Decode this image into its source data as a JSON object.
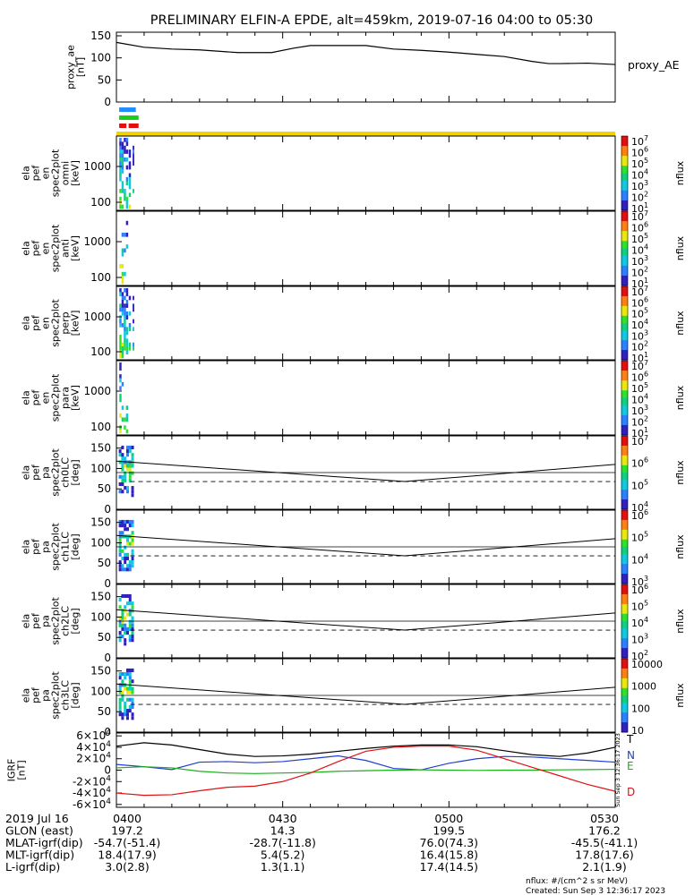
{
  "title": "PRELIMINARY ELFIN-A EPDE, alt=459km, 2019-07-16 04:00 to 05:30",
  "colors": {
    "black": "#000000",
    "blue": "#1f3fd0",
    "green": "#18b018",
    "red": "#e01010",
    "yellow": "#f2d200"
  },
  "chart_data": [
    {
      "type": "line",
      "name": "proxy_ae",
      "ylabel_lines": [
        "proxy_ae",
        "[nT]"
      ],
      "legend": "proxy_AE",
      "ylim": [
        0,
        150
      ],
      "yticks": [
        "150",
        "100",
        "50",
        "0"
      ],
      "x_minutes": [
        0,
        5,
        10,
        15,
        22,
        28,
        32,
        35,
        45,
        50,
        55,
        60,
        65,
        70,
        75,
        78,
        80,
        85,
        90
      ],
      "values": [
        135,
        124,
        120,
        118,
        112,
        112,
        122,
        128,
        128,
        120,
        117,
        113,
        108,
        103,
        92,
        87,
        87,
        88,
        85
      ]
    },
    {
      "type": "bar",
      "name": "state_bars",
      "colors": [
        "#1f8fff",
        "#18d018",
        "#e01010",
        "#f2d200"
      ]
    },
    {
      "type": "heatmap",
      "name": "spec_omni",
      "ylabel_lines": [
        "ela",
        "pef",
        "en",
        "spec2plot",
        "omni",
        "[keV]"
      ],
      "yticks": [
        "1000",
        "100"
      ],
      "zlabel": "nflux",
      "zticks": [
        "10^7",
        "10^6",
        "10^5",
        "10^4",
        "10^3",
        "10^2",
        "10^1"
      ]
    },
    {
      "type": "heatmap",
      "name": "spec_anti",
      "ylabel_lines": [
        "ela",
        "pef",
        "en",
        "spec2plot",
        "anti",
        "[keV]"
      ],
      "yticks": [
        "1000",
        "100"
      ],
      "zlabel": "nflux",
      "zticks": [
        "10^7",
        "10^6",
        "10^5",
        "10^4",
        "10^3",
        "10^2",
        "10^1"
      ]
    },
    {
      "type": "heatmap",
      "name": "spec_perp",
      "ylabel_lines": [
        "ela",
        "pef",
        "en",
        "spec2plot",
        "perp",
        "[keV]"
      ],
      "yticks": [
        "1000",
        "100"
      ],
      "zlabel": "nflux",
      "zticks": [
        "10^7",
        "10^6",
        "10^5",
        "10^4",
        "10^3",
        "10^2",
        "10^1"
      ]
    },
    {
      "type": "heatmap",
      "name": "spec_para",
      "ylabel_lines": [
        "ela",
        "pef",
        "en",
        "spec2plot",
        "para",
        "[keV]"
      ],
      "yticks": [
        "1000",
        "100"
      ],
      "zlabel": "nflux",
      "zticks": [
        "10^7",
        "10^6",
        "10^5",
        "10^4",
        "10^3",
        "10^2",
        "10^1"
      ]
    },
    {
      "type": "heatmap",
      "name": "pa_ch0",
      "ylabel_lines": [
        "ela",
        "pef",
        "pa",
        "spec2plot",
        "ch0LC",
        "[deg]"
      ],
      "ylim": [
        0,
        180
      ],
      "yticks": [
        "150",
        "100",
        "50",
        "0"
      ],
      "zlabel": "nflux",
      "zticks": [
        "10^7",
        "10^6",
        "10^5",
        "10^4"
      ],
      "solid_line": {
        "x": [
          0,
          52,
          90
        ],
        "y": [
          118,
          68,
          110
        ]
      },
      "ref_line": 90,
      "dashed_line": 68
    },
    {
      "type": "heatmap",
      "name": "pa_ch1",
      "ylabel_lines": [
        "ela",
        "pef",
        "pa",
        "spec2plot",
        "ch1LC",
        "[deg]"
      ],
      "ylim": [
        0,
        180
      ],
      "yticks": [
        "150",
        "100",
        "50",
        "0"
      ],
      "zlabel": "nflux",
      "zticks": [
        "10^6",
        "10^5",
        "10^4",
        "10^3"
      ],
      "solid_line": {
        "x": [
          0,
          52,
          90
        ],
        "y": [
          118,
          68,
          110
        ]
      },
      "ref_line": 90,
      "dashed_line": 68
    },
    {
      "type": "heatmap",
      "name": "pa_ch2",
      "ylabel_lines": [
        "ela",
        "pef",
        "pa",
        "spec2plot",
        "ch2LC",
        "[deg]"
      ],
      "ylim": [
        0,
        180
      ],
      "yticks": [
        "150",
        "100",
        "50",
        "0"
      ],
      "zlabel": "nflux",
      "zticks": [
        "10^6",
        "10^5",
        "10^4",
        "10^3",
        "10^2"
      ],
      "solid_line": {
        "x": [
          0,
          52,
          90
        ],
        "y": [
          118,
          68,
          110
        ]
      },
      "ref_line": 90,
      "dashed_line": 68
    },
    {
      "type": "heatmap",
      "name": "pa_ch3",
      "ylabel_lines": [
        "ela",
        "pef",
        "pa",
        "spec2plot",
        "ch3LC",
        "[deg]"
      ],
      "ylim": [
        0,
        180
      ],
      "yticks": [
        "150",
        "100",
        "50",
        "0"
      ],
      "zlabel": "nflux",
      "zticks": [
        "10000",
        "1000",
        "100",
        "10"
      ],
      "solid_line": {
        "x": [
          0,
          52,
          90
        ],
        "y": [
          118,
          68,
          110
        ]
      },
      "ref_line": 90,
      "dashed_line": 68
    },
    {
      "type": "line",
      "name": "igrf",
      "ylabel_lines": [
        "IGRF",
        "[nT]"
      ],
      "ylim": [
        -65000,
        65000
      ],
      "yticks": [
        "6×10^4",
        "4×10^4",
        "2×10^4",
        "0",
        "-2×10^4",
        "-4×10^4",
        "-6×10^4"
      ],
      "side_note": "Sun Sep 3 12:36:17 2023",
      "x": [
        0,
        5,
        10,
        15,
        20,
        25,
        30,
        35,
        40,
        45,
        50,
        55,
        60,
        65,
        70,
        75,
        80,
        85,
        90
      ],
      "series": [
        {
          "name": "T",
          "color": "#000000",
          "values": [
            42000,
            48000,
            44000,
            36000,
            28000,
            24000,
            25000,
            28000,
            33000,
            38000,
            42000,
            44000,
            44000,
            41000,
            34000,
            27000,
            24000,
            30000,
            40000
          ]
        },
        {
          "name": "N",
          "color": "#1f3fd0",
          "values": [
            10000,
            6000,
            1000,
            14000,
            15000,
            13000,
            15000,
            20000,
            25000,
            17000,
            3000,
            500,
            12000,
            20000,
            24000,
            23000,
            20000,
            17000,
            14000
          ]
        },
        {
          "name": "E",
          "color": "#18b018",
          "values": [
            4000,
            6000,
            4000,
            -2000,
            -5000,
            -6000,
            -5000,
            -4000,
            -2000,
            -1000,
            0,
            500,
            0,
            -500,
            0,
            0,
            500,
            1000,
            1500
          ]
        },
        {
          "name": "D",
          "color": "#e01010",
          "values": [
            -40000,
            -44000,
            -43000,
            -36000,
            -30000,
            -28000,
            -20000,
            -5000,
            15000,
            33000,
            40000,
            42000,
            42000,
            35000,
            20000,
            5000,
            -10000,
            -25000,
            -37000
          ]
        }
      ]
    }
  ],
  "footer": {
    "rows": [
      {
        "label": "2019 Jul 16",
        "values": [
          "0400",
          "0430",
          "0500",
          "0530"
        ]
      },
      {
        "label": "GLON (east)",
        "values": [
          "197.2",
          "14.3",
          "199.5",
          "176.2"
        ]
      },
      {
        "label": "MLAT-igrf(dip)",
        "values": [
          "-54.7(-51.4)",
          "-28.7(-11.8)",
          "76.0(74.3)",
          "-45.5(-41.1)"
        ]
      },
      {
        "label": "MLT-igrf(dip)",
        "values": [
          "18.4(17.9)",
          "5.4(5.2)",
          "16.4(15.8)",
          "17.8(17.6)"
        ]
      },
      {
        "label": "L-igrf(dip)",
        "values": [
          "3.0(2.8)",
          "1.3(1.1)",
          "17.4(14.5)",
          "2.1(1.9)"
        ]
      }
    ],
    "note1": "nflux: #/(cm^2 s sr MeV)",
    "note2": "Created: Sun Sep  3 12:36:17 2023"
  }
}
